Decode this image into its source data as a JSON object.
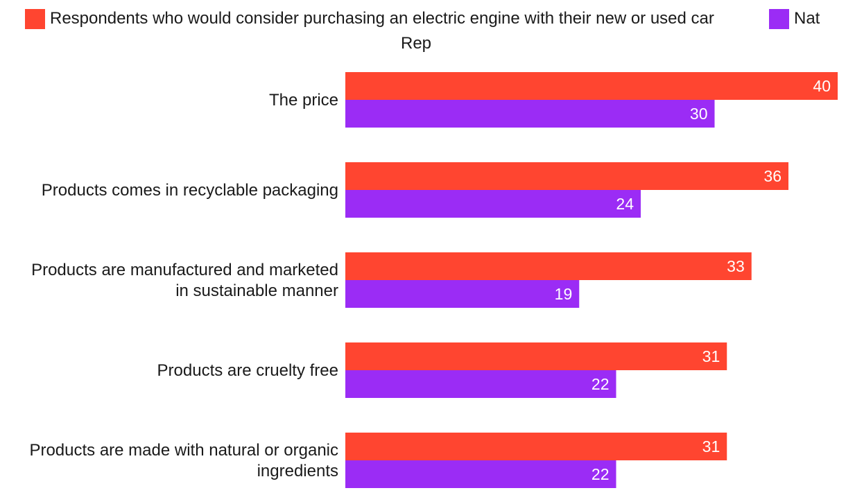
{
  "chart_data": {
    "type": "bar",
    "orientation": "horizontal",
    "title": "",
    "xlabel": "",
    "ylabel": "",
    "xlim": [
      0,
      40
    ],
    "grid": false,
    "legend_position": "top",
    "categories": [
      [
        "The price"
      ],
      [
        "Products comes in recyclable packaging"
      ],
      [
        "Products are manufactured and marketed",
        "in sustainable manner"
      ],
      [
        "Products are cruelty free"
      ],
      [
        "Products are made with natural or organic",
        "ingredients"
      ]
    ],
    "series": [
      {
        "name": "Respondents who would consider purchasing an electric engine with their new or used car",
        "color": "#ff4530",
        "values": [
          40,
          36,
          33,
          31,
          31
        ]
      },
      {
        "name": "Nat Rep",
        "color": "#9b2cf5",
        "values": [
          30,
          24,
          19,
          22,
          22
        ]
      }
    ]
  }
}
